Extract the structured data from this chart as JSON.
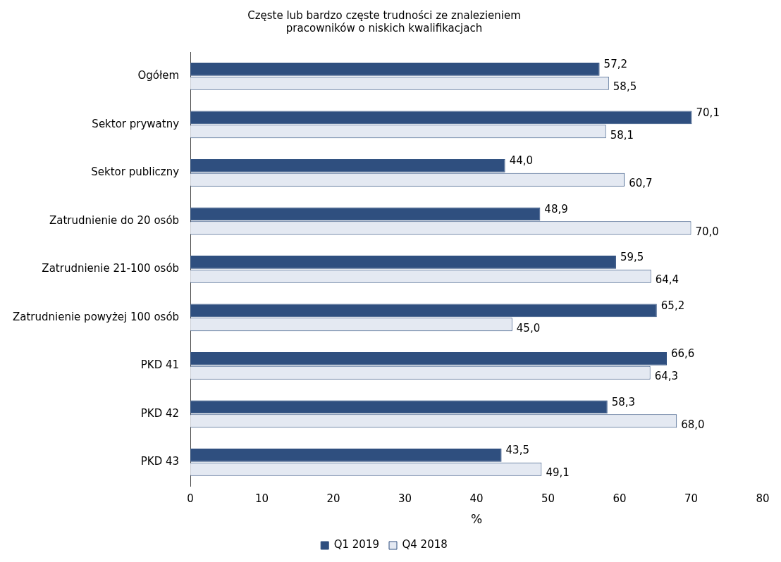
{
  "chart_data": {
    "type": "bar",
    "orientation": "horizontal",
    "title": "Częste lub bardzo częste trudności ze znalezieniem pracowników o niskich kwalifikacjach",
    "xlabel": "%",
    "categories": [
      "Ogółem",
      "Sektor prywatny",
      "Sektor publiczny",
      "Zatrudnienie do 20 osób",
      "Zatrudnienie 21-100 osób",
      "Zatrudnienie powyżej 100 osób",
      "PKD 41",
      "PKD 42",
      "PKD 43"
    ],
    "series": [
      {
        "name": "Q1 2019",
        "color": "#2f4f7f",
        "values": [
          57.2,
          70.1,
          44.0,
          48.9,
          59.5,
          65.2,
          66.6,
          58.3,
          43.5
        ],
        "value_labels": [
          "57,2",
          "70,1",
          "44,0",
          "48,9",
          "59,5",
          "65,2",
          "66,6",
          "58,3",
          "43,5"
        ]
      },
      {
        "name": "Q4 2018",
        "color": "#e4e9f2",
        "values": [
          58.5,
          58.1,
          60.7,
          70.0,
          64.4,
          45.0,
          64.3,
          68.0,
          49.1
        ],
        "value_labels": [
          "58,5",
          "58,1",
          "60,7",
          "70,0",
          "64,4",
          "45,0",
          "64,3",
          "68,0",
          "49,1"
        ]
      }
    ],
    "xlim": [
      0,
      80
    ],
    "xticks": [
      0,
      10,
      20,
      30,
      40,
      50,
      60,
      70,
      80
    ],
    "grid": false,
    "legend": "bottom"
  }
}
